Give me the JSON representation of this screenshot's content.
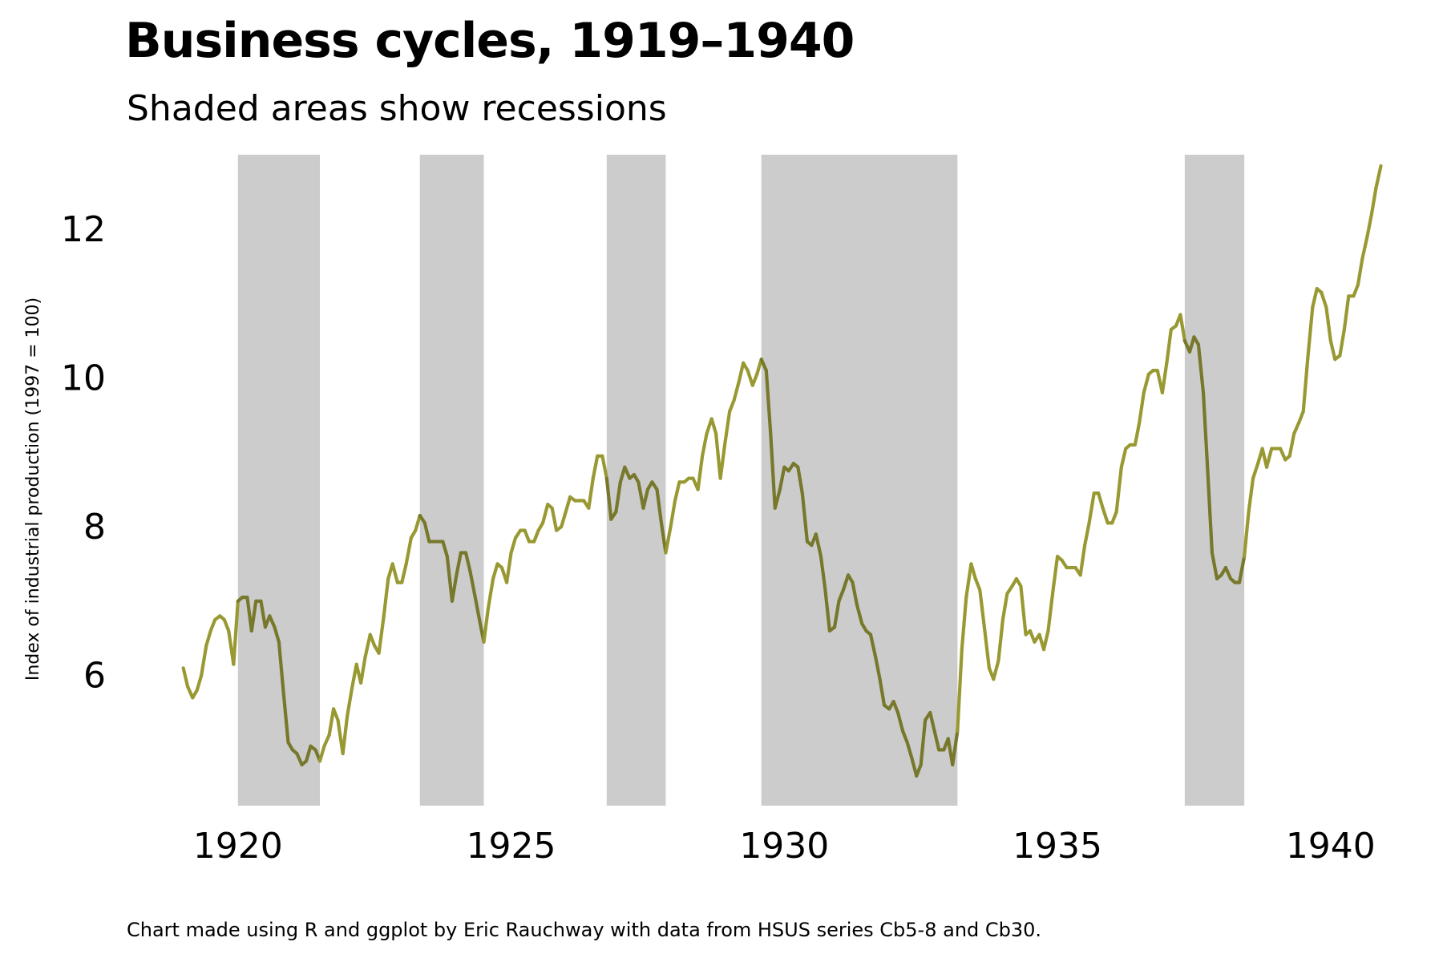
{
  "chart_data": {
    "type": "line",
    "title": "Business cycles, 1919–1940",
    "subtitle": "Shaded areas show recessions",
    "ylabel": "Index of industrial production (1997 = 100)",
    "xlabel": "",
    "caption": "Chart made using R and ggplot by Eric Rauchway with data from HSUS series Cb5-8 and Cb30.",
    "xlim": [
      1918.55,
      1941.25
    ],
    "ylim": [
      4.25,
      13.0
    ],
    "x_ticks": [
      1920,
      1925,
      1930,
      1935,
      1940
    ],
    "y_ticks": [
      6,
      8,
      10,
      12
    ],
    "grid": false,
    "line_color": "#999933",
    "line_color_in_recession": "#77782b",
    "shade_color": "#cccccc",
    "recessions": [
      [
        1920.0,
        1921.5
      ],
      [
        1923.33,
        1924.5
      ],
      [
        1926.75,
        1927.83
      ],
      [
        1929.58,
        1933.17
      ],
      [
        1937.33,
        1938.42
      ]
    ],
    "series": [
      {
        "x": [
          1919.0,
          1919.08,
          1919.17,
          1919.25,
          1919.33,
          1919.42,
          1919.5,
          1919.58,
          1919.67,
          1919.75,
          1919.83,
          1919.92,
          1920.0,
          1920.08,
          1920.17,
          1920.25,
          1920.33,
          1920.42,
          1920.5,
          1920.58,
          1920.67,
          1920.75,
          1920.83,
          1920.92,
          1921.0,
          1921.08,
          1921.17,
          1921.25,
          1921.33,
          1921.42,
          1921.5,
          1921.58,
          1921.67,
          1921.75,
          1921.83,
          1921.92,
          1922.0,
          1922.08,
          1922.17,
          1922.25,
          1922.33,
          1922.42,
          1922.5,
          1922.58,
          1922.67,
          1922.75,
          1922.83,
          1922.92,
          1923.0,
          1923.08,
          1923.17,
          1923.25,
          1923.33,
          1923.42,
          1923.5,
          1923.58,
          1923.67,
          1923.75,
          1923.83,
          1923.92,
          1924.0,
          1924.08,
          1924.17,
          1924.25,
          1924.33,
          1924.42,
          1924.5,
          1924.58,
          1924.67,
          1924.75,
          1924.83,
          1924.92,
          1925.0,
          1925.08,
          1925.17,
          1925.25,
          1925.33,
          1925.42,
          1925.5,
          1925.58,
          1925.67,
          1925.75,
          1925.83,
          1925.92,
          1926.0,
          1926.08,
          1926.17,
          1926.25,
          1926.33,
          1926.42,
          1926.5,
          1926.58,
          1926.67,
          1926.75,
          1926.83,
          1926.92,
          1927.0,
          1927.08,
          1927.17,
          1927.25,
          1927.33,
          1927.42,
          1927.5,
          1927.58,
          1927.67,
          1927.75,
          1927.83,
          1927.92,
          1928.0,
          1928.08,
          1928.17,
          1928.25,
          1928.33,
          1928.42,
          1928.5,
          1928.58,
          1928.67,
          1928.75,
          1928.83,
          1928.92,
          1929.0,
          1929.08,
          1929.17,
          1929.25,
          1929.33,
          1929.42,
          1929.5,
          1929.58,
          1929.67,
          1929.75,
          1929.83,
          1929.92,
          1930.0,
          1930.08,
          1930.17,
          1930.25,
          1930.33,
          1930.42,
          1930.5,
          1930.58,
          1930.67,
          1930.75,
          1930.83,
          1930.92,
          1931.0,
          1931.08,
          1931.17,
          1931.25,
          1931.33,
          1931.42,
          1931.5,
          1931.58,
          1931.67,
          1931.75,
          1931.83,
          1931.92,
          1932.0,
          1932.08,
          1932.17,
          1932.25,
          1932.33,
          1932.42,
          1932.5,
          1932.58,
          1932.67,
          1932.75,
          1932.83,
          1932.92,
          1933.0,
          1933.08,
          1933.17,
          1933.25,
          1933.33,
          1933.42,
          1933.5,
          1933.58,
          1933.67,
          1933.75,
          1933.83,
          1933.92,
          1934.0,
          1934.08,
          1934.17,
          1934.25,
          1934.33,
          1934.42,
          1934.5,
          1934.58,
          1934.67,
          1934.75,
          1934.83,
          1934.92,
          1935.0,
          1935.08,
          1935.17,
          1935.25,
          1935.33,
          1935.42,
          1935.5,
          1935.58,
          1935.67,
          1935.75,
          1935.83,
          1935.92,
          1936.0,
          1936.08,
          1936.17,
          1936.25,
          1936.33,
          1936.42,
          1936.5,
          1936.58,
          1936.67,
          1936.75,
          1936.83,
          1936.92,
          1937.0,
          1937.08,
          1937.17,
          1937.25,
          1937.33,
          1937.42,
          1937.5,
          1937.58,
          1937.67,
          1937.75,
          1937.83,
          1937.92,
          1938.0,
          1938.08,
          1938.17,
          1938.25,
          1938.33,
          1938.42,
          1938.5,
          1938.58,
          1938.67,
          1938.75,
          1938.83,
          1938.92,
          1939.0,
          1939.08,
          1939.17,
          1939.25,
          1939.33,
          1939.42,
          1939.5,
          1939.58,
          1939.67,
          1939.75,
          1939.83,
          1939.92,
          1940.0,
          1940.08,
          1940.17,
          1940.25,
          1940.33,
          1940.42,
          1940.5,
          1940.58,
          1940.67,
          1940.75,
          1940.83,
          1940.92
        ],
        "y": [
          6.1,
          5.85,
          5.7,
          5.8,
          6.0,
          6.4,
          6.6,
          6.75,
          6.8,
          6.75,
          6.6,
          6.15,
          7.0,
          7.05,
          7.05,
          6.6,
          7.0,
          7.0,
          6.65,
          6.8,
          6.65,
          6.45,
          5.8,
          5.1,
          5.0,
          4.95,
          4.8,
          4.85,
          5.05,
          5.0,
          4.85,
          5.05,
          5.2,
          5.55,
          5.4,
          4.95,
          5.45,
          5.8,
          6.15,
          5.9,
          6.25,
          6.55,
          6.4,
          6.3,
          6.8,
          7.3,
          7.5,
          7.25,
          7.25,
          7.5,
          7.85,
          7.95,
          8.15,
          8.05,
          7.8,
          7.8,
          7.8,
          7.8,
          7.6,
          7.0,
          7.35,
          7.65,
          7.65,
          7.4,
          7.1,
          6.75,
          6.45,
          6.9,
          7.3,
          7.5,
          7.45,
          7.25,
          7.65,
          7.85,
          7.95,
          7.95,
          7.8,
          7.8,
          7.95,
          8.05,
          8.3,
          8.25,
          7.95,
          8.0,
          8.2,
          8.4,
          8.35,
          8.35,
          8.35,
          8.25,
          8.65,
          8.95,
          8.95,
          8.65,
          8.1,
          8.2,
          8.6,
          8.8,
          8.65,
          8.7,
          8.6,
          8.25,
          8.5,
          8.6,
          8.5,
          8.05,
          7.65,
          8.0,
          8.35,
          8.6,
          8.6,
          8.65,
          8.65,
          8.5,
          8.95,
          9.25,
          9.45,
          9.25,
          8.65,
          9.15,
          9.55,
          9.7,
          9.95,
          10.2,
          10.1,
          9.9,
          10.05,
          10.25,
          10.1,
          9.25,
          8.25,
          8.5,
          8.8,
          8.75,
          8.85,
          8.8,
          8.45,
          7.8,
          7.75,
          7.9,
          7.6,
          7.15,
          6.6,
          6.65,
          7.0,
          7.15,
          7.35,
          7.25,
          6.95,
          6.7,
          6.6,
          6.55,
          6.25,
          5.95,
          5.6,
          5.55,
          5.65,
          5.5,
          5.25,
          5.1,
          4.9,
          4.65,
          4.8,
          5.4,
          5.5,
          5.25,
          5.0,
          5.0,
          5.15,
          4.8,
          5.25,
          6.35,
          7.05,
          7.5,
          7.3,
          7.15,
          6.6,
          6.1,
          5.95,
          6.2,
          6.75,
          7.1,
          7.2,
          7.3,
          7.2,
          6.55,
          6.6,
          6.45,
          6.55,
          6.35,
          6.6,
          7.15,
          7.6,
          7.55,
          7.45,
          7.45,
          7.45,
          7.35,
          7.75,
          8.05,
          8.45,
          8.45,
          8.25,
          8.05,
          8.05,
          8.2,
          8.8,
          9.05,
          9.1,
          9.1,
          9.4,
          9.8,
          10.05,
          10.1,
          10.1,
          9.8,
          10.2,
          10.65,
          10.7,
          10.85,
          10.5,
          10.35,
          10.55,
          10.45,
          9.8,
          8.75,
          7.65,
          7.3,
          7.35,
          7.45,
          7.3,
          7.25,
          7.25,
          7.6,
          8.2,
          8.65,
          8.85,
          9.05,
          8.8,
          9.05,
          9.05,
          9.05,
          8.9,
          8.95,
          9.25,
          9.4,
          9.55,
          10.25,
          10.95,
          11.2,
          11.15,
          10.95,
          10.5,
          10.25,
          10.3,
          10.65,
          11.1,
          11.1,
          11.25,
          11.6,
          11.9,
          12.2,
          12.55,
          12.85
        ]
      }
    ]
  }
}
